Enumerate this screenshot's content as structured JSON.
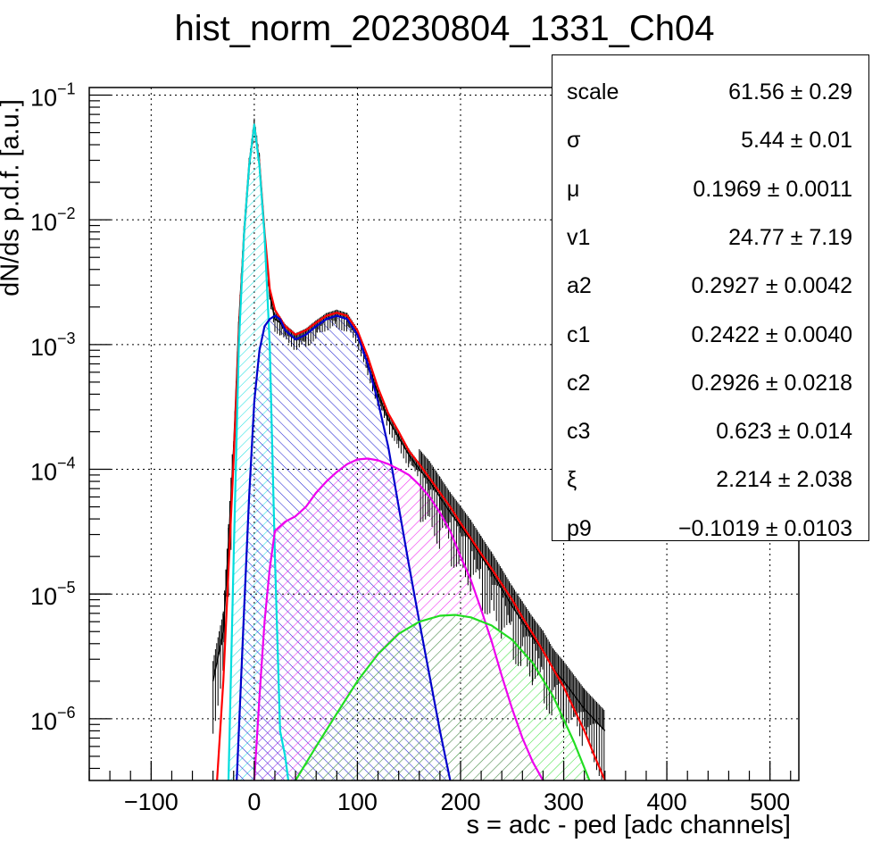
{
  "title": "hist_norm_20230804_1331_Ch04",
  "xlabel": "s = adc - ped [adc channels]",
  "ylabel": "dN/ds p.d.f. [a.u.]",
  "stats": [
    {
      "name": "scale",
      "value": "61.56 ± 0.29"
    },
    {
      "name": "σ",
      "value": "5.44 ± 0.01"
    },
    {
      "name": "μ",
      "value": "0.1969 ± 0.0011"
    },
    {
      "name": "v1",
      "value": "24.77 ± 7.19"
    },
    {
      "name": "a2",
      "value": "0.2927 ± 0.0042"
    },
    {
      "name": "c1",
      "value": "0.2422 ± 0.0040"
    },
    {
      "name": "c2",
      "value": "0.2926 ± 0.0218"
    },
    {
      "name": "c3",
      "value": "0.623 ± 0.014"
    },
    {
      "name": "ξ",
      "value": "2.214 ± 2.038"
    },
    {
      "name": "p9",
      "value": "−0.1019 ± 0.0103"
    }
  ],
  "chart_data": {
    "type": "line",
    "xlim": [
      -160,
      528
    ],
    "ylim": [
      3.2e-07,
      0.115
    ],
    "ylog": true,
    "grid": true,
    "xticks": [
      {
        "v": -100,
        "label": "−100"
      },
      {
        "v": 0,
        "label": "0"
      },
      {
        "v": 100,
        "label": "100"
      },
      {
        "v": 200,
        "label": "200"
      },
      {
        "v": 300,
        "label": "300"
      },
      {
        "v": 400,
        "label": "400"
      },
      {
        "v": 500,
        "label": "500"
      }
    ],
    "yticks": [
      {
        "exp": -6,
        "label": "10",
        "sup": "−6"
      },
      {
        "exp": -5,
        "label": "10",
        "sup": "−5"
      },
      {
        "exp": -4,
        "label": "10",
        "sup": "−4"
      },
      {
        "exp": -3,
        "label": "10",
        "sup": "−3"
      },
      {
        "exp": -2,
        "label": "10",
        "sup": "−2"
      },
      {
        "exp": -1,
        "label": "10",
        "sup": "−1"
      }
    ],
    "series": [
      {
        "name": "",
        "style": "histogram",
        "color": "#000000",
        "x": [
          -40,
          -30,
          -25,
          -20,
          -15,
          -10,
          -5,
          0,
          5,
          10,
          15,
          20,
          25,
          30,
          40,
          50,
          60,
          70,
          80,
          90,
          100,
          110,
          120,
          130,
          140,
          150,
          160,
          170,
          180,
          190,
          200,
          210,
          220,
          230,
          240,
          250,
          260,
          270,
          280,
          290,
          300,
          320,
          340
        ],
        "y": [
          2e-06,
          5e-06,
          2.5e-05,
          0.00015,
          0.0015,
          0.008,
          0.028,
          0.058,
          0.03,
          0.008,
          0.0025,
          0.0016,
          0.0015,
          0.0013,
          0.0011,
          0.0012,
          0.0014,
          0.0016,
          0.0017,
          0.0016,
          0.0012,
          0.0007,
          0.0004,
          0.00025,
          0.00018,
          0.00013,
          0.0001,
          8e-05,
          6e-05,
          4.5e-05,
          3.5e-05,
          2.7e-05,
          2e-05,
          1.5e-05,
          1.1e-05,
          8e-06,
          6e-06,
          4.5e-06,
          3.5e-06,
          2.5e-06,
          2e-06,
          1.2e-06,
          8e-07
        ]
      },
      {
        "name": "",
        "style": "total-fit",
        "color": "#ff0000",
        "x": [
          -40,
          -30,
          -20,
          -15,
          -10,
          -5,
          0,
          5,
          10,
          15,
          20,
          30,
          40,
          50,
          60,
          70,
          80,
          90,
          100,
          110,
          120,
          130,
          140,
          150,
          160,
          170,
          180,
          190,
          200,
          210,
          220,
          230,
          240,
          250,
          260,
          270,
          280,
          290,
          300,
          310,
          320,
          330,
          340
        ],
        "y": [
          1e-07,
          2e-06,
          0.00012,
          0.0012,
          0.0075,
          0.027,
          0.058,
          0.028,
          0.008,
          0.0028,
          0.0019,
          0.0014,
          0.0012,
          0.0013,
          0.0015,
          0.0017,
          0.0018,
          0.0017,
          0.0013,
          0.0008,
          0.00045,
          0.00028,
          0.0002,
          0.00014,
          0.00011,
          8.5e-05,
          6.5e-05,
          5e-05,
          3.7e-05,
          2.8e-05,
          2.1e-05,
          1.6e-05,
          1.2e-05,
          9e-06,
          6.5e-06,
          4.8e-06,
          3.5e-06,
          2.5e-06,
          1.8e-06,
          1.2e-06,
          8e-07,
          5e-07,
          3.2e-07
        ]
      },
      {
        "name": "",
        "style": "filled-hatched",
        "color": "#00dddd",
        "x": [
          -25,
          -20,
          -15,
          -10,
          -5,
          0,
          5,
          10,
          15,
          20,
          25,
          30,
          33
        ],
        "y": [
          3.2e-07,
          2e-05,
          0.001,
          0.0075,
          0.027,
          0.058,
          0.027,
          0.0075,
          0.001,
          2e-05,
          8e-07,
          5e-07,
          3.2e-07
        ]
      },
      {
        "name": "",
        "style": "filled-hatched",
        "color": "#0000cc",
        "x": [
          -17,
          -10,
          -5,
          0,
          5,
          10,
          15,
          20,
          25,
          30,
          40,
          50,
          60,
          70,
          80,
          90,
          100,
          110,
          120,
          130,
          140,
          150,
          160,
          170,
          180,
          190
        ],
        "y": [
          3.2e-07,
          7e-06,
          6e-05,
          0.00035,
          0.0009,
          0.0014,
          0.0016,
          0.0017,
          0.0016,
          0.0013,
          0.0011,
          0.0012,
          0.0014,
          0.0016,
          0.0017,
          0.0016,
          0.0012,
          0.0007,
          0.00035,
          0.00015,
          5e-05,
          1.7e-05,
          6e-06,
          2.2e-06,
          8e-07,
          3.2e-07
        ]
      },
      {
        "name": "",
        "style": "filled-hatched",
        "color": "#ee00ee",
        "x": [
          0,
          5,
          10,
          15,
          20,
          30,
          40,
          50,
          60,
          70,
          80,
          90,
          100,
          110,
          120,
          130,
          140,
          150,
          160,
          170,
          180,
          190,
          200,
          210,
          220,
          230,
          240,
          250,
          260,
          270,
          280
        ],
        "y": [
          3.2e-07,
          1.5e-06,
          6e-06,
          1.6e-05,
          3.2e-05,
          3.8e-05,
          4.2e-05,
          5e-05,
          6.5e-05,
          8e-05,
          9.5e-05,
          0.00011,
          0.00012,
          0.000122,
          0.000118,
          0.00011,
          0.0001,
          9e-05,
          7.5e-05,
          6e-05,
          4.5e-05,
          3.2e-05,
          2e-05,
          1.3e-05,
          7.5e-06,
          4.2e-06,
          2.2e-06,
          1.2e-06,
          7e-07,
          4.5e-07,
          3.2e-07
        ]
      },
      {
        "name": "",
        "style": "filled-hatched",
        "color": "#22dd22",
        "x": [
          40,
          60,
          80,
          100,
          120,
          140,
          160,
          180,
          195,
          210,
          230,
          250,
          270,
          290,
          310,
          325
        ],
        "y": [
          3.2e-07,
          6e-07,
          1.1e-06,
          2e-06,
          3.3e-06,
          4.8e-06,
          6e-06,
          6.7e-06,
          6.8e-06,
          6.5e-06,
          5.6e-06,
          4.3e-06,
          2.8e-06,
          1.5e-06,
          6.5e-07,
          3.2e-07
        ]
      }
    ]
  }
}
